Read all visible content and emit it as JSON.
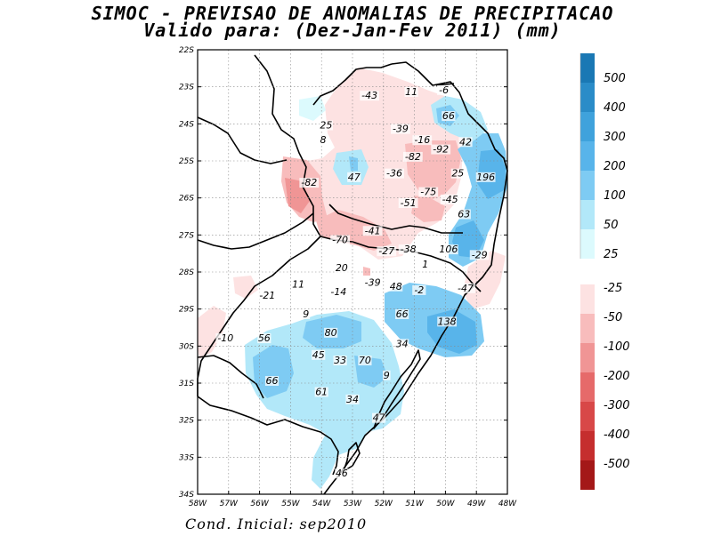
{
  "title": {
    "line1": "SIMOC - PREVISAO DE ANOMALIAS DE PRECIPITACAO",
    "line2": "Valido para: (Dez-Jan-Fev 2011) (mm)"
  },
  "footer": "Cond. Inicial: sep2010",
  "axes": {
    "lat_labels": [
      "22S",
      "23S",
      "24S",
      "25S",
      "26S",
      "27S",
      "28S",
      "29S",
      "30S",
      "31S",
      "32S",
      "33S",
      "34S"
    ],
    "lon_labels": [
      "58W",
      "57W",
      "56W",
      "55W",
      "54W",
      "53W",
      "52W",
      "51W",
      "50W",
      "49W",
      "48W"
    ]
  },
  "colorbar": {
    "positive": [
      {
        "label": "500",
        "color": "#1a78b4"
      },
      {
        "label": "400",
        "color": "#2a8cc8"
      },
      {
        "label": "300",
        "color": "#3fa2dc"
      },
      {
        "label": "200",
        "color": "#58b4ea"
      },
      {
        "label": "100",
        "color": "#7ecbf3"
      },
      {
        "label": "50",
        "color": "#b2e8f9"
      },
      {
        "label": "25",
        "color": "#dcfafd"
      }
    ],
    "negative": [
      {
        "label": "-25",
        "color": "#fde2e2"
      },
      {
        "label": "-50",
        "color": "#f8bcbc"
      },
      {
        "label": "-100",
        "color": "#f09595"
      },
      {
        "label": "-200",
        "color": "#e66a6a"
      },
      {
        "label": "-300",
        "color": "#d84848"
      },
      {
        "label": "-400",
        "color": "#c52e2e"
      },
      {
        "label": "-500",
        "color": "#a41818"
      }
    ]
  },
  "contour_labels": [
    {
      "text": "-43",
      "lon": -52.45,
      "lat": -23.3
    },
    {
      "text": "11",
      "lon": -51.1,
      "lat": -23.2
    },
    {
      "text": "-6",
      "lon": -50.05,
      "lat": -23.15
    },
    {
      "text": "66",
      "lon": -49.9,
      "lat": -23.85
    },
    {
      "text": "25",
      "lon": -53.85,
      "lat": -24.1
    },
    {
      "text": "-39",
      "lon": -51.45,
      "lat": -24.2
    },
    {
      "text": "8",
      "lon": -53.95,
      "lat": -24.5
    },
    {
      "text": "-16",
      "lon": -50.75,
      "lat": -24.5
    },
    {
      "text": "-92",
      "lon": -50.15,
      "lat": -24.75
    },
    {
      "text": "42",
      "lon": -49.35,
      "lat": -24.55
    },
    {
      "text": "-82",
      "lon": -51.05,
      "lat": -24.95
    },
    {
      "text": "47",
      "lon": -52.95,
      "lat": -25.5
    },
    {
      "text": "-36",
      "lon": -51.65,
      "lat": -25.4
    },
    {
      "text": "25",
      "lon": -49.6,
      "lat": -25.4
    },
    {
      "text": "196",
      "lon": -48.7,
      "lat": -25.5
    },
    {
      "text": "-82",
      "lon": -54.4,
      "lat": -25.65
    },
    {
      "text": "-75",
      "lon": -50.55,
      "lat": -25.9
    },
    {
      "text": "-45",
      "lon": -49.85,
      "lat": -26.1
    },
    {
      "text": "-51",
      "lon": -51.2,
      "lat": -26.2
    },
    {
      "text": "63",
      "lon": -49.4,
      "lat": -26.5
    },
    {
      "text": "-41",
      "lon": -52.35,
      "lat": -26.95
    },
    {
      "text": "-70",
      "lon": -53.4,
      "lat": -27.2
    },
    {
      "text": "-27",
      "lon": -51.9,
      "lat": -27.5
    },
    {
      "text": "-38",
      "lon": -51.2,
      "lat": -27.45
    },
    {
      "text": "106",
      "lon": -49.9,
      "lat": -27.45
    },
    {
      "text": "-29",
      "lon": -48.9,
      "lat": -27.6
    },
    {
      "text": "1",
      "lon": -50.65,
      "lat": -27.85
    },
    {
      "text": "20",
      "lon": -53.35,
      "lat": -27.95
    },
    {
      "text": "-39",
      "lon": -52.35,
      "lat": -28.35
    },
    {
      "text": "48",
      "lon": -51.6,
      "lat": -28.45
    },
    {
      "text": "-2",
      "lon": -50.85,
      "lat": -28.55
    },
    {
      "text": "-47",
      "lon": -49.35,
      "lat": -28.5
    },
    {
      "text": "11",
      "lon": -54.75,
      "lat": -28.4
    },
    {
      "text": "-14",
      "lon": -53.45,
      "lat": -28.6
    },
    {
      "text": "-21",
      "lon": -55.75,
      "lat": -28.7
    },
    {
      "text": "9",
      "lon": -54.5,
      "lat": -29.2
    },
    {
      "text": "66",
      "lon": -51.4,
      "lat": -29.2
    },
    {
      "text": "138",
      "lon": -49.95,
      "lat": -29.4
    },
    {
      "text": "80",
      "lon": -53.7,
      "lat": -29.7
    },
    {
      "text": "-10",
      "lon": -57.1,
      "lat": -29.85
    },
    {
      "text": "56",
      "lon": -55.85,
      "lat": -29.85
    },
    {
      "text": "34",
      "lon": -51.4,
      "lat": -30.0
    },
    {
      "text": "45",
      "lon": -54.1,
      "lat": -30.3
    },
    {
      "text": "33",
      "lon": -53.4,
      "lat": -30.45
    },
    {
      "text": "70",
      "lon": -52.6,
      "lat": -30.45
    },
    {
      "text": "66",
      "lon": -55.6,
      "lat": -31.0
    },
    {
      "text": "9",
      "lon": -51.9,
      "lat": -30.85
    },
    {
      "text": "61",
      "lon": -54.0,
      "lat": -31.3
    },
    {
      "text": "34",
      "lon": -53.0,
      "lat": -31.5
    },
    {
      "text": "47",
      "lon": -52.15,
      "lat": -32.0
    },
    {
      "text": "46",
      "lon": -53.35,
      "lat": -33.5
    }
  ]
}
